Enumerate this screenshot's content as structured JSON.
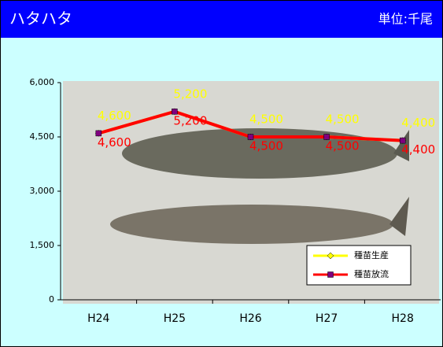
{
  "chart_data": {
    "type": "line",
    "title": "ハタハタ",
    "unit": "単位:千尾",
    "categories": [
      "H24",
      "H25",
      "H26",
      "H27",
      "H28"
    ],
    "series": [
      {
        "name": "種苗生産",
        "color": "#ffff00",
        "marker_color": "#ffff00",
        "marker": "diamond",
        "values": [
          4600,
          5200,
          4500,
          4500,
          4400
        ],
        "value_labels": [
          "4,600",
          "5,200",
          "4,500",
          "4,500",
          "4,400"
        ]
      },
      {
        "name": "種苗放流",
        "color": "#ff0000",
        "marker_color": "#800080",
        "marker": "square",
        "values": [
          4600,
          5200,
          4500,
          4500,
          4400
        ],
        "value_labels": [
          "4,600",
          "5,200",
          "4,500",
          "4,500",
          "4,400"
        ]
      }
    ],
    "ylim": [
      0,
      6000
    ],
    "yticks": [
      0,
      {
        "value": 1500,
        "label": "1,500"
      },
      {
        "value": 3000,
        "label": "3,000"
      },
      {
        "value": 4500,
        "label": "4,500"
      },
      {
        "value": 6000,
        "label": "6,000"
      }
    ],
    "legend": "lower right"
  }
}
